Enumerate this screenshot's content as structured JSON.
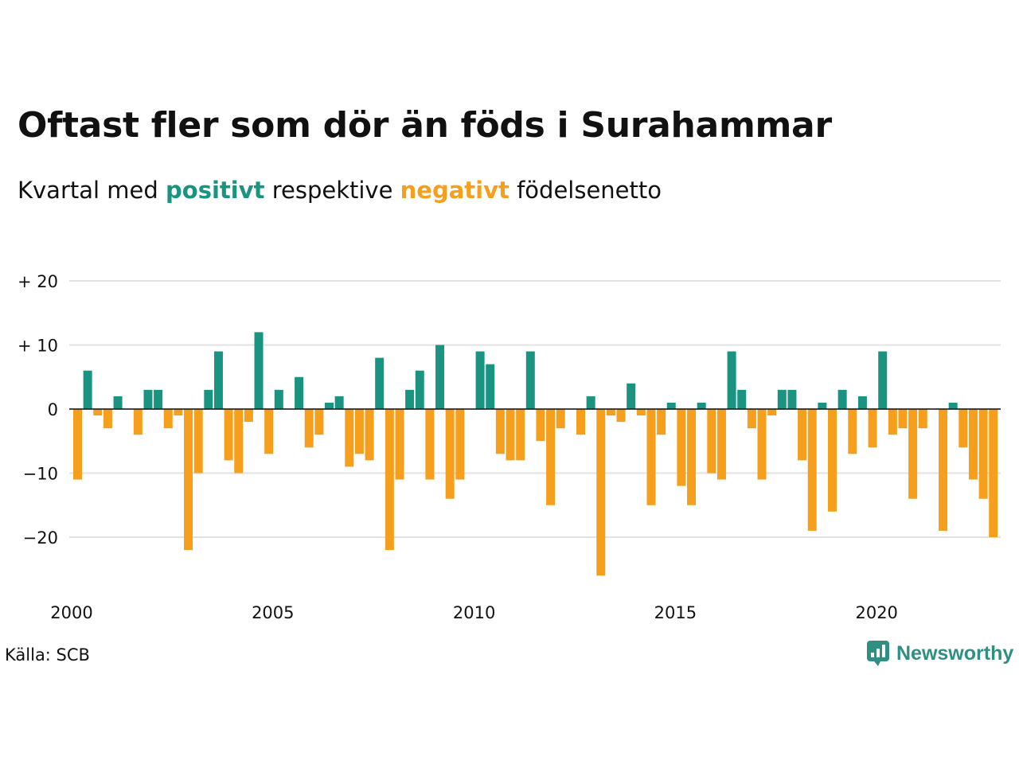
{
  "title": "Oftast fler som dör än föds i Surahammar",
  "subtitle": {
    "prefix": "Kvartal med ",
    "positive_word": "positivt",
    "middle": " respektive ",
    "negative_word": "negativt",
    "suffix": " födelsenetto"
  },
  "source": "Källa: SCB",
  "brand": {
    "name": "Newsworthy",
    "icon": "newsworthy-logo-icon"
  },
  "colors": {
    "positive": "#1a9481",
    "negative": "#f59f1d",
    "grid": "#e2e2e2",
    "text": "#111111",
    "brand": "#2f8f83"
  },
  "chart_data": {
    "type": "bar",
    "x_ticks": [
      "2000",
      "2005",
      "2010",
      "2015",
      "2020"
    ],
    "y_ticks": [
      {
        "value": 20,
        "label": "+ 20"
      },
      {
        "value": 10,
        "label": "+ 10"
      },
      {
        "value": 0,
        "label": "0"
      },
      {
        "value": -10,
        "label": "−10"
      },
      {
        "value": -20,
        "label": "−20"
      }
    ],
    "ylim": [
      -28,
      20
    ],
    "grid": true,
    "x_start": "2000 Q1",
    "frequency": "quarterly",
    "values": [
      -11,
      6,
      -1,
      -3,
      2,
      0,
      -4,
      3,
      3,
      -3,
      -1,
      -22,
      -10,
      3,
      9,
      -8,
      -10,
      -2,
      12,
      -7,
      3,
      0,
      5,
      -6,
      -4,
      1,
      2,
      -9,
      -7,
      -8,
      8,
      -22,
      -11,
      3,
      6,
      -11,
      10,
      -14,
      -11,
      0,
      9,
      7,
      -7,
      -8,
      -8,
      9,
      -5,
      -15,
      -3,
      0,
      -4,
      2,
      -26,
      -1,
      -2,
      4,
      -1,
      -15,
      -4,
      1,
      -12,
      -15,
      1,
      -10,
      -11,
      9,
      3,
      -3,
      -11,
      -1,
      3,
      3,
      -8,
      -19,
      1,
      -16,
      3,
      -7,
      2,
      -6,
      9,
      -4,
      -3,
      -14,
      -3,
      0,
      -19,
      1,
      -6,
      -11,
      -14,
      -20
    ]
  }
}
